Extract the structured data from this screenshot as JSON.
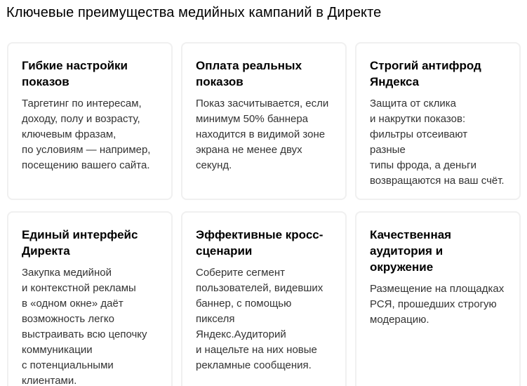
{
  "page": {
    "title": "Ключевые преимущества медийных кампаний в Директе"
  },
  "cards": [
    {
      "title": "Гибкие настройки\nпоказов",
      "body": "Таргетинг по интересам,\nдоходу, полу и возрасту,\nключевым фразам,\nпо условиям — например,\nпосещению вашего сайта."
    },
    {
      "title": "Оплата реальных\nпоказов",
      "body": "Показ засчитывается, если\nминимум 50% баннера\nнаходится в видимой зоне\nэкрана не менее двух\nсекунд."
    },
    {
      "title": "Строгий антифрод\nЯндекса",
      "body": "Защита от склика\nи накрутки показов:\nфильтры отсеивают разные\nтипы фрода, а деньги\nвозвращаются на ваш счёт."
    },
    {
      "title": "Единый интерфейс\nДиректа",
      "body": "Закупка медийной\nи контекстной рекламы\nв «одном окне» даёт\nвозможность легко\nвыстраивать всю цепочку\nкоммуникации\nс потенциальными\nклиентами."
    },
    {
      "title": "Эффективные кросс-\nсценарии",
      "body": "Соберите сегмент\nпользователей, видевших\nбаннер, с помощью пикселя\nЯндекс.Аудиторий\nи нацельте на них новые\nрекламные сообщения."
    },
    {
      "title": "Качественная\nаудитория и окружение",
      "body": "Размещение на площадках\nРСЯ, прошедших строгую\nмодерацию."
    }
  ],
  "colors": {
    "background": "#ffffff",
    "card_border": "#f0f0f0",
    "title_text": "#000000",
    "body_text": "#333333"
  }
}
